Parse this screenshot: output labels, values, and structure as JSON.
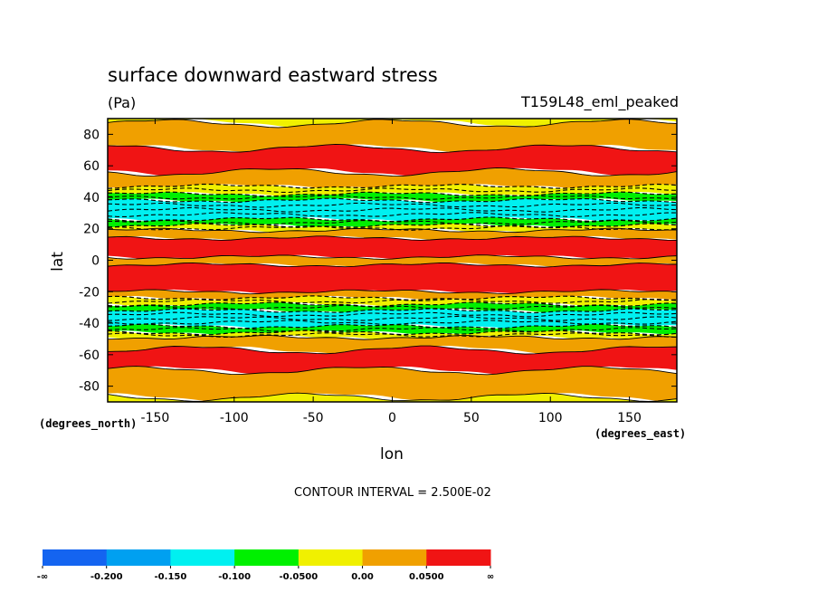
{
  "chart_data": {
    "type": "heatmap",
    "title": "surface downward eastward stress",
    "units": "(Pa)",
    "run_label": "T159L48_eml_peaked",
    "xlabel": "lon",
    "ylabel": "lat",
    "x_units": "(degrees_east)",
    "y_units": "(degrees_north)",
    "xlim": [
      -180,
      180
    ],
    "ylim": [
      -90,
      90
    ],
    "x_ticks": [
      -150,
      -100,
      -50,
      0,
      50,
      100,
      150
    ],
    "y_ticks": [
      80,
      60,
      40,
      20,
      0,
      -20,
      -40,
      -60,
      -80
    ],
    "x_tick_labels": [
      "-150",
      "-100",
      "-50",
      "0",
      "50",
      "100",
      "150"
    ],
    "y_tick_labels": [
      "80",
      "60",
      "40",
      "20",
      "0",
      "-20",
      "-40",
      "-60",
      "-80"
    ],
    "contour_interval_text": "CONTOUR INTERVAL = 2.500E-02",
    "colorbar": {
      "bins": [
        {
          "color": "#1464f0"
        },
        {
          "color": "#00a0f0"
        },
        {
          "color": "#00f0f0"
        },
        {
          "color": "#00f000"
        },
        {
          "color": "#f0f000"
        },
        {
          "color": "#f0a000"
        },
        {
          "color": "#f01414"
        }
      ],
      "labels": [
        "-∞",
        "-0.200",
        "-0.150",
        "-0.100",
        "-0.0500",
        "0.00",
        "0.0500",
        "∞"
      ]
    },
    "zonal_bands": [
      {
        "lat_range": [
          87,
          90
        ],
        "value_class": 0.0,
        "color": "#f0f000"
      },
      {
        "lat_range": [
          71,
          87
        ],
        "value_class": 0.025,
        "color": "#f0a000"
      },
      {
        "lat_range": [
          56,
          71
        ],
        "value_class": 0.06,
        "color": "#f01414"
      },
      {
        "lat_range": [
          47,
          56
        ],
        "value_class": 0.025,
        "color": "#f0a000"
      },
      {
        "lat_range": [
          42,
          47
        ],
        "value_class": -0.025,
        "color": "#f0f000"
      },
      {
        "lat_range": [
          38,
          42
        ],
        "value_class": -0.075,
        "color": "#00f000"
      },
      {
        "lat_range": [
          26,
          38
        ],
        "value_class": -0.125,
        "color": "#00f0f0"
      },
      {
        "lat_range": [
          22,
          26
        ],
        "value_class": -0.075,
        "color": "#00f000"
      },
      {
        "lat_range": [
          19,
          22
        ],
        "value_class": -0.025,
        "color": "#f0f000"
      },
      {
        "lat_range": [
          14,
          19
        ],
        "value_class": 0.025,
        "color": "#f0a000"
      },
      {
        "lat_range": [
          2,
          14
        ],
        "value_class": 0.06,
        "color": "#f01414"
      },
      {
        "lat_range": [
          -3,
          2
        ],
        "value_class": 0.025,
        "color": "#f0a000"
      },
      {
        "lat_range": [
          -20,
          -3
        ],
        "value_class": 0.06,
        "color": "#f01414"
      },
      {
        "lat_range": [
          -24,
          -20
        ],
        "value_class": 0.025,
        "color": "#f0a000"
      },
      {
        "lat_range": [
          -28,
          -24
        ],
        "value_class": -0.025,
        "color": "#f0f000"
      },
      {
        "lat_range": [
          -32,
          -28
        ],
        "value_class": -0.075,
        "color": "#00f000"
      },
      {
        "lat_range": [
          -42,
          -32
        ],
        "value_class": -0.125,
        "color": "#00f0f0"
      },
      {
        "lat_range": [
          -46,
          -42
        ],
        "value_class": -0.075,
        "color": "#00f000"
      },
      {
        "lat_range": [
          -49,
          -46
        ],
        "value_class": -0.025,
        "color": "#f0f000"
      },
      {
        "lat_range": [
          -57,
          -49
        ],
        "value_class": 0.025,
        "color": "#f0a000"
      },
      {
        "lat_range": [
          -70,
          -57
        ],
        "value_class": 0.06,
        "color": "#f01414"
      },
      {
        "lat_range": [
          -87,
          -70
        ],
        "value_class": 0.025,
        "color": "#f0a000"
      },
      {
        "lat_range": [
          -90,
          -87
        ],
        "value_class": 0.0,
        "color": "#f0f000"
      }
    ],
    "grid": false
  }
}
